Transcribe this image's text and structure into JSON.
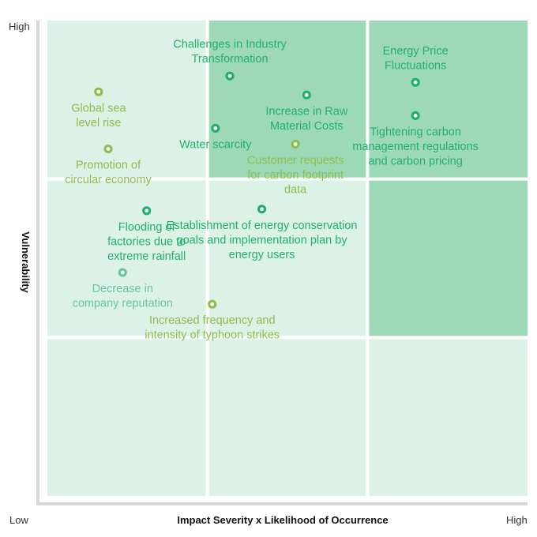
{
  "chart_data": {
    "type": "scatter",
    "title": "",
    "xlabel": "Impact Severity x Likelihood of Occurrence",
    "ylabel": "Vulnerability",
    "x_ticks": {
      "low": "Low",
      "high": "High"
    },
    "y_ticks": {
      "high": "High"
    },
    "xlim": [
      0,
      3
    ],
    "ylim": [
      0,
      3
    ],
    "grid": "3x3 matrix",
    "cells": [
      [
        "light",
        "dark",
        "dark"
      ],
      [
        "light",
        "light",
        "dark"
      ],
      [
        "light",
        "light",
        "light"
      ]
    ],
    "colors": {
      "cell_light": "#DDF2E7",
      "cell_dark": "#9DD9B6",
      "transition": "#21B06B",
      "physical": "#8CBE4E",
      "reputation": "#66C4A6",
      "axis": "#D6D6D6"
    },
    "points": [
      {
        "label": [
          "Challenges in Industry",
          "Transformation"
        ],
        "x": 1.14,
        "y": 2.65,
        "color": "transition",
        "label_position": "above"
      },
      {
        "label": [
          "Energy Price",
          "Fluctuations"
        ],
        "x": 2.3,
        "y": 2.61,
        "color": "transition",
        "label_position": "above"
      },
      {
        "label": [
          "Global sea",
          "level rise"
        ],
        "x": 0.32,
        "y": 2.55,
        "color": "physical",
        "label_position": "below"
      },
      {
        "label": [
          "Increase in Raw",
          "Material Costs"
        ],
        "x": 1.62,
        "y": 2.53,
        "color": "transition",
        "label_position": "below"
      },
      {
        "label": [
          "Tightening carbon",
          "management regulations",
          "and carbon pricing"
        ],
        "x": 2.3,
        "y": 2.4,
        "color": "transition",
        "label_position": "below"
      },
      {
        "label": [
          "Water scarcity"
        ],
        "x": 1.05,
        "y": 2.32,
        "color": "transition",
        "label_position": "below"
      },
      {
        "label": [
          "Customer requests",
          "for carbon footprint",
          "data"
        ],
        "x": 1.55,
        "y": 2.22,
        "color": "physical",
        "label_position": "below"
      },
      {
        "label": [
          "Promotion of",
          "circular economy"
        ],
        "x": 0.38,
        "y": 2.19,
        "color": "physical",
        "label_position": "below"
      },
      {
        "label": [
          "Establishment of energy conservation",
          "goals and implementation plan by",
          "energy users"
        ],
        "x": 1.34,
        "y": 1.81,
        "color": "transition",
        "label_position": "below"
      },
      {
        "label": [
          "Flooding of",
          "factories due to",
          "extreme rainfall"
        ],
        "x": 0.62,
        "y": 1.8,
        "color": "transition",
        "label_position": "below"
      },
      {
        "label": [
          "Decrease in",
          "company reputation"
        ],
        "x": 0.47,
        "y": 1.41,
        "color": "reputation",
        "label_position": "below"
      },
      {
        "label": [
          "Increased frequency and",
          "intensity of typhoon strikes"
        ],
        "x": 1.03,
        "y": 1.21,
        "color": "physical",
        "label_position": "below"
      }
    ]
  }
}
